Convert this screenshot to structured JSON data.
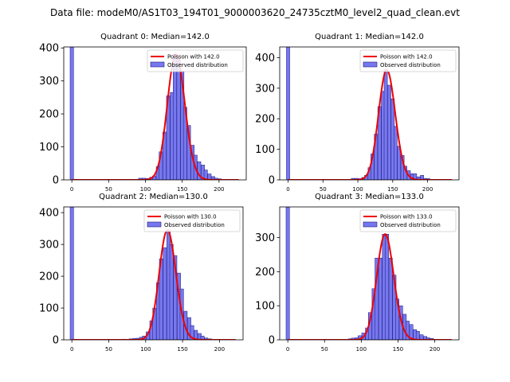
{
  "suptitle": "Data file: modeM0/AS1T03_194T01_9000003620_24735cztM0_level2_quad_clean.evt",
  "legend_observed": "Observed distribution",
  "colors": {
    "hist_fill": "#7777ee",
    "hist_edge": "#1a1a80",
    "poisson": "#ee0000"
  },
  "chart_data": [
    {
      "type": "bar",
      "title": "Quadrant 0: Median=142.0",
      "poisson_label": "Poisson with 142.0",
      "mu": 142.0,
      "xlim": [
        -11,
        237
      ],
      "ylim": [
        0,
        403
      ],
      "xticks": [
        0,
        50,
        100,
        150,
        200
      ],
      "yticks": [
        0,
        100,
        200,
        300,
        400
      ],
      "bin_width": 4.7,
      "bins": [
        [
          0,
          403
        ],
        [
          93,
          5
        ],
        [
          98,
          5
        ],
        [
          103,
          4
        ],
        [
          108,
          8
        ],
        [
          112,
          12
        ],
        [
          117,
          40
        ],
        [
          121,
          85
        ],
        [
          126,
          145
        ],
        [
          131,
          255
        ],
        [
          136,
          265
        ],
        [
          140,
          380
        ],
        [
          145,
          365
        ],
        [
          150,
          330
        ],
        [
          154,
          220
        ],
        [
          159,
          165
        ],
        [
          164,
          105
        ],
        [
          168,
          75
        ],
        [
          173,
          55
        ],
        [
          178,
          45
        ],
        [
          182,
          30
        ],
        [
          187,
          18
        ],
        [
          192,
          10
        ],
        [
          196,
          5
        ],
        [
          201,
          3
        ],
        [
          206,
          1
        ],
        [
          210,
          1
        ],
        [
          220,
          1
        ]
      ]
    },
    {
      "type": "bar",
      "title": "Quadrant 1: Median=142.0",
      "poisson_label": "Poisson with 142.0",
      "mu": 142.0,
      "xlim": [
        -12,
        245
      ],
      "ylim": [
        0,
        435
      ],
      "xticks": [
        0,
        50,
        100,
        150,
        200
      ],
      "yticks": [
        0,
        100,
        200,
        300,
        400
      ],
      "bin_width": 4.7,
      "bins": [
        [
          0,
          435
        ],
        [
          93,
          5
        ],
        [
          98,
          5
        ],
        [
          103,
          4
        ],
        [
          108,
          8
        ],
        [
          112,
          15
        ],
        [
          117,
          40
        ],
        [
          121,
          85
        ],
        [
          126,
          150
        ],
        [
          131,
          240
        ],
        [
          136,
          290
        ],
        [
          140,
          360
        ],
        [
          145,
          310
        ],
        [
          150,
          265
        ],
        [
          154,
          175
        ],
        [
          159,
          110
        ],
        [
          164,
          80
        ],
        [
          168,
          45
        ],
        [
          173,
          30
        ],
        [
          178,
          20
        ],
        [
          182,
          20
        ],
        [
          187,
          10
        ],
        [
          192,
          15
        ],
        [
          196,
          5
        ],
        [
          201,
          4
        ],
        [
          206,
          1
        ],
        [
          210,
          1
        ],
        [
          224,
          1
        ]
      ]
    },
    {
      "type": "bar",
      "title": "Quadrant 2: Median=130.0",
      "poisson_label": "Poisson with 130.0",
      "mu": 130.0,
      "xlim": [
        -11,
        232
      ],
      "ylim": [
        0,
        418
      ],
      "xticks": [
        0,
        50,
        100,
        150,
        200
      ],
      "yticks": [
        0,
        100,
        200,
        300,
        400
      ],
      "bin_width": 4.7,
      "bins": [
        [
          0,
          418
        ],
        [
          70,
          2
        ],
        [
          80,
          3
        ],
        [
          85,
          4
        ],
        [
          89,
          5
        ],
        [
          94,
          8
        ],
        [
          98,
          12
        ],
        [
          103,
          25
        ],
        [
          108,
          60
        ],
        [
          112,
          100
        ],
        [
          117,
          180
        ],
        [
          121,
          255
        ],
        [
          126,
          290
        ],
        [
          131,
          345
        ],
        [
          135,
          300
        ],
        [
          140,
          265
        ],
        [
          145,
          210
        ],
        [
          149,
          160
        ],
        [
          154,
          90
        ],
        [
          159,
          70
        ],
        [
          163,
          45
        ],
        [
          168,
          30
        ],
        [
          173,
          20
        ],
        [
          177,
          12
        ],
        [
          182,
          6
        ],
        [
          187,
          3
        ],
        [
          196,
          1
        ]
      ]
    },
    {
      "type": "bar",
      "title": "Quadrant 3: Median=133.0",
      "poisson_label": "Poisson with 133.0",
      "mu": 133.0,
      "xlim": [
        -11,
        233
      ],
      "ylim": [
        0,
        390
      ],
      "xticks": [
        0,
        50,
        100,
        150,
        200
      ],
      "yticks": [
        0,
        100,
        200,
        300
      ],
      "bin_width": 4.7,
      "bins": [
        [
          0,
          390
        ],
        [
          85,
          3
        ],
        [
          89,
          5
        ],
        [
          94,
          6
        ],
        [
          98,
          12
        ],
        [
          103,
          20
        ],
        [
          108,
          35
        ],
        [
          112,
          80
        ],
        [
          117,
          150
        ],
        [
          121,
          240
        ],
        [
          126,
          240
        ],
        [
          131,
          310
        ],
        [
          135,
          310
        ],
        [
          140,
          240
        ],
        [
          145,
          190
        ],
        [
          149,
          120
        ],
        [
          154,
          100
        ],
        [
          159,
          75
        ],
        [
          163,
          55
        ],
        [
          168,
          45
        ],
        [
          173,
          30
        ],
        [
          177,
          25
        ],
        [
          182,
          15
        ],
        [
          187,
          10
        ],
        [
          191,
          6
        ],
        [
          196,
          4
        ],
        [
          210,
          1
        ]
      ]
    }
  ]
}
